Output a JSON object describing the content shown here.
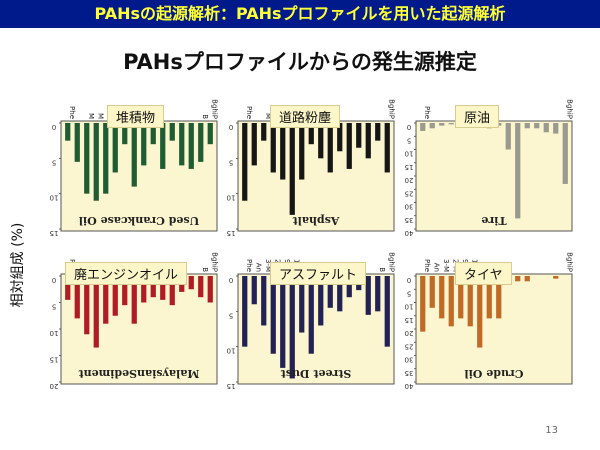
{
  "header": {
    "banner": "PAHsの起源解析：PAHsプロファイルを用いた起源解析"
  },
  "main_title": "PAHsプロファイルからの発生源推定",
  "ylabel": "相対組成 (%)",
  "page_number": "13",
  "colors": {
    "banner_bg": "#001a8c",
    "banner_text": "#ffff33",
    "panel_bg": "#fbf6cf"
  },
  "chart_data": [
    {
      "type": "bar",
      "panel_title": "堆積物",
      "caption": "Used Crankcase Oil",
      "color": "#1f5c34",
      "top_ticks": [
        "Phe",
        "",
        "M",
        "M",
        "M",
        "M",
        "",
        "",
        "C",
        "",
        "",
        "",
        "",
        "",
        "B",
        "BghiP"
      ],
      "yticks": [
        "0",
        "5",
        "10",
        "15"
      ],
      "ylim": [
        0,
        15
      ],
      "values": [
        2.5,
        5.5,
        10,
        11,
        10,
        7,
        3,
        9,
        6,
        3,
        6.5,
        2.5,
        6,
        6.5,
        5.5,
        3
      ]
    },
    {
      "type": "bar",
      "panel_title": "道路粉塵",
      "caption": "Asphalt",
      "color": "#161616",
      "top_ticks": [
        "Phe",
        "",
        "M",
        "M",
        "M",
        "M",
        "",
        "",
        "C",
        "",
        "",
        "",
        "",
        "",
        "",
        "BghiP"
      ],
      "yticks": [
        "0",
        "5",
        "10",
        "15"
      ],
      "ylim": [
        0,
        15
      ],
      "values": [
        11,
        6,
        2.5,
        7,
        8,
        13,
        8,
        3,
        5,
        7,
        4,
        6.5,
        3.5,
        5,
        2.5,
        7
      ]
    },
    {
      "type": "bar",
      "panel_title": "原油",
      "caption": "Tire",
      "color": "#9a9a8e",
      "top_ticks": [
        "Phe",
        "",
        "",
        "",
        "",
        "",
        "",
        "",
        "",
        "",
        "",
        "",
        "",
        "",
        "",
        "BghiP"
      ],
      "yticks": [
        "0",
        "5",
        "10",
        "15",
        "20",
        "25",
        "30",
        "35",
        "40"
      ],
      "ylim": [
        0,
        40
      ],
      "values": [
        3,
        2,
        1,
        0.5,
        1,
        1,
        0.5,
        2,
        1,
        10,
        36,
        2,
        2,
        3.5,
        4,
        23
      ]
    },
    {
      "type": "bar",
      "panel_title": "廃エンジンオイル",
      "caption": "MalaysianSediment",
      "color": "#b01c24",
      "top_ticks": [
        "Phe",
        "An",
        "M",
        "M",
        "M",
        "",
        "",
        "",
        "",
        "",
        "",
        "",
        "",
        "",
        "B",
        "BghiP"
      ],
      "yticks": [
        "0",
        "5",
        "10",
        "15",
        "20"
      ],
      "ylim": [
        0,
        20
      ],
      "values": [
        4.5,
        8,
        11,
        13.5,
        9,
        7.5,
        5.5,
        9,
        5,
        4,
        4.5,
        5.5,
        3,
        2.5,
        4,
        5
      ]
    },
    {
      "type": "bar",
      "panel_title": "アスファルト",
      "caption": "Street Dust",
      "color": "#222255",
      "top_ticks": [
        "Phe",
        "An",
        "3-M",
        "2-M",
        "9-M",
        "1-M",
        "",
        "",
        "C",
        "",
        "",
        "B",
        "",
        "",
        "B",
        "BghiP"
      ],
      "yticks": [
        "0",
        "5",
        "10",
        "15"
      ],
      "ylim": [
        0,
        15
      ],
      "values": [
        10,
        4,
        7,
        11,
        13,
        14.5,
        8,
        11,
        7,
        4.5,
        5,
        3,
        2,
        5.5,
        5,
        10
      ]
    },
    {
      "type": "bar",
      "panel_title": "タイヤ",
      "caption": "Crude Oil",
      "color": "#c06a28",
      "top_ticks": [
        "Phe",
        "An",
        "3-M",
        "2-M",
        "9-M",
        "1-M",
        "Fl",
        "Py",
        "",
        "",
        "",
        "",
        "",
        "",
        "",
        "BghiP"
      ],
      "yticks": [
        "0",
        "5",
        "10",
        "15",
        "20",
        "25",
        "30",
        "35",
        "40"
      ],
      "ylim": [
        0,
        40
      ],
      "values": [
        21,
        12,
        16,
        19,
        16,
        19,
        27,
        16,
        16,
        1,
        2,
        2,
        0,
        0,
        1,
        0
      ]
    }
  ]
}
